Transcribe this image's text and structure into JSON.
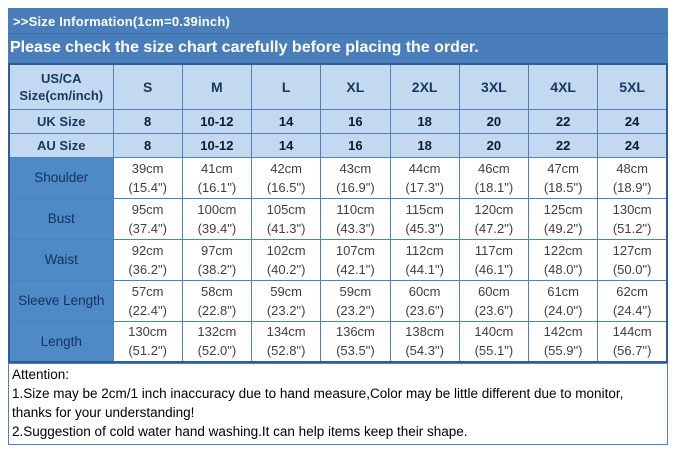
{
  "banner": {
    "title": ">>Size Information(1cm=0.39inch)",
    "subtitle": "Please check the size chart carefully before placing the order."
  },
  "table": {
    "corner": {
      "line1": "US/CA",
      "line2": "Size(cm/inch)"
    },
    "sizes": [
      "S",
      "M",
      "L",
      "XL",
      "2XL",
      "3XL",
      "4XL",
      "5XL"
    ],
    "uk_row": {
      "label": "UK Size",
      "values": [
        "8",
        "10-12",
        "14",
        "16",
        "18",
        "20",
        "22",
        "24"
      ]
    },
    "au_row": {
      "label": "AU Size",
      "values": [
        "8",
        "10-12",
        "14",
        "16",
        "18",
        "20",
        "22",
        "24"
      ]
    },
    "measurements": [
      {
        "label": "Shoulder",
        "cells": [
          {
            "cm": "39cm",
            "in": "(15.4\")"
          },
          {
            "cm": "41cm",
            "in": "(16.1\")"
          },
          {
            "cm": "42cm",
            "in": "(16.5\")"
          },
          {
            "cm": "43cm",
            "in": "(16.9\")"
          },
          {
            "cm": "44cm",
            "in": "(17.3\")"
          },
          {
            "cm": "46cm",
            "in": "(18.1\")"
          },
          {
            "cm": "47cm",
            "in": "(18.5\")"
          },
          {
            "cm": "48cm",
            "in": "(18.9\")"
          }
        ]
      },
      {
        "label": "Bust",
        "cells": [
          {
            "cm": "95cm",
            "in": "(37.4\")"
          },
          {
            "cm": "100cm",
            "in": "(39.4\")"
          },
          {
            "cm": "105cm",
            "in": "(41.3\")"
          },
          {
            "cm": "110cm",
            "in": "(43.3\")"
          },
          {
            "cm": "115cm",
            "in": "(45.3\")"
          },
          {
            "cm": "120cm",
            "in": "(47.2\")"
          },
          {
            "cm": "125cm",
            "in": "(49.2\")"
          },
          {
            "cm": "130cm",
            "in": "(51.2\")"
          }
        ]
      },
      {
        "label": "Waist",
        "cells": [
          {
            "cm": "92cm",
            "in": "(36.2\")"
          },
          {
            "cm": "97cm",
            "in": "(38.2\")"
          },
          {
            "cm": "102cm",
            "in": "(40.2\")"
          },
          {
            "cm": "107cm",
            "in": "(42.1\")"
          },
          {
            "cm": "112cm",
            "in": "(44.1\")"
          },
          {
            "cm": "117cm",
            "in": "(46.1\")"
          },
          {
            "cm": "122cm",
            "in": "(48.0\")"
          },
          {
            "cm": "127cm",
            "in": "(50.0\")"
          }
        ]
      },
      {
        "label": "Sleeve Length",
        "cells": [
          {
            "cm": "57cm",
            "in": "(22.4\")"
          },
          {
            "cm": "58cm",
            "in": "(22.8\")"
          },
          {
            "cm": "59cm",
            "in": "(23.2\")"
          },
          {
            "cm": "59cm",
            "in": "(23.2\")"
          },
          {
            "cm": "60cm",
            "in": "(23.6\")"
          },
          {
            "cm": "60cm",
            "in": "(23.6\")"
          },
          {
            "cm": "61cm",
            "in": "(24.0\")"
          },
          {
            "cm": "62cm",
            "in": "(24.4\")"
          }
        ]
      },
      {
        "label": "Length",
        "cells": [
          {
            "cm": "130cm",
            "in": "(51.2\")"
          },
          {
            "cm": "132cm",
            "in": "(52.0\")"
          },
          {
            "cm": "134cm",
            "in": "(52.8\")"
          },
          {
            "cm": "136cm",
            "in": "(53.5\")"
          },
          {
            "cm": "138cm",
            "in": "(54.3\")"
          },
          {
            "cm": "140cm",
            "in": "(55.1\")"
          },
          {
            "cm": "142cm",
            "in": "(55.9\")"
          },
          {
            "cm": "144cm",
            "in": "(56.7\")"
          }
        ]
      }
    ]
  },
  "attention": {
    "lines": [
      "Attention:",
      "1.Size may be 2cm/1 inch inaccuracy due to hand measure,Color may be little different due to monitor,",
      "thanks for your understanding!",
      "2.Suggestion of cold water hand washing.It can help items keep their shape."
    ]
  },
  "colors": {
    "banner_bg": "#4a7ebb",
    "header_bg": "#c3d9f0",
    "label_bg": "#4e8ac6",
    "grid_border": "#4f81bd",
    "header_text": "#17375e",
    "cell_text": "#3f3f3f"
  }
}
